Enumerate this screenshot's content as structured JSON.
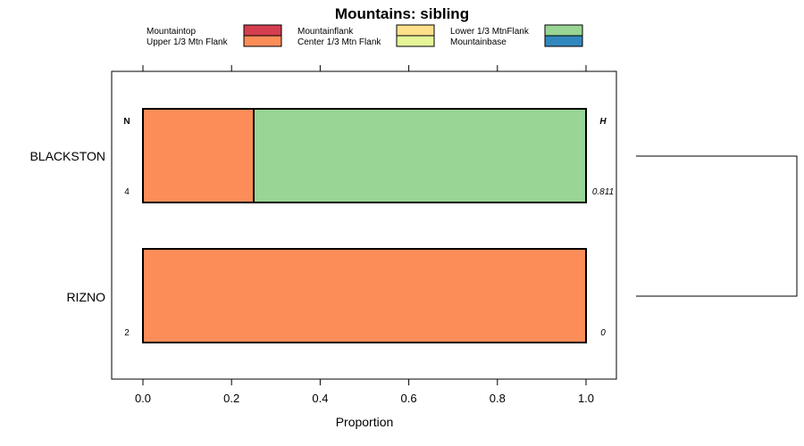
{
  "chart_data": {
    "type": "bar",
    "orientation": "horizontal",
    "stacked": true,
    "title": "Mountains: sibling",
    "xlabel": "Proportion",
    "ylabel": "",
    "xlim": [
      -0.07,
      1.07
    ],
    "x_ticks": [
      "0.0",
      "0.2",
      "0.4",
      "0.6",
      "0.8",
      "1.0"
    ],
    "categories": [
      "BLACKSTON",
      "RIZNO"
    ],
    "series": [
      {
        "name": "Mountaintop",
        "color": "#d53e4f",
        "values": [
          0,
          0
        ]
      },
      {
        "name": "Upper 1/3 Mtn Flank",
        "color": "#fc8d59",
        "values": [
          0.25,
          1.0
        ]
      },
      {
        "name": "Mountainflank",
        "color": "#fee08b",
        "values": [
          0,
          0
        ]
      },
      {
        "name": "Center 1/3 Mtn Flank",
        "color": "#e6f598",
        "values": [
          0,
          0
        ]
      },
      {
        "name": "Lower 1/3 MtnFlank",
        "color": "#99d594",
        "values": [
          0.75,
          0
        ]
      },
      {
        "name": "Mountainbase",
        "color": "#3288bd",
        "values": [
          0,
          0
        ]
      }
    ],
    "n_header": "N",
    "h_header": "H",
    "n_values": [
      "4",
      "2"
    ],
    "h_values": [
      "0.811",
      "0"
    ],
    "legend_position": "top",
    "grid": false,
    "dendrogram": true
  }
}
